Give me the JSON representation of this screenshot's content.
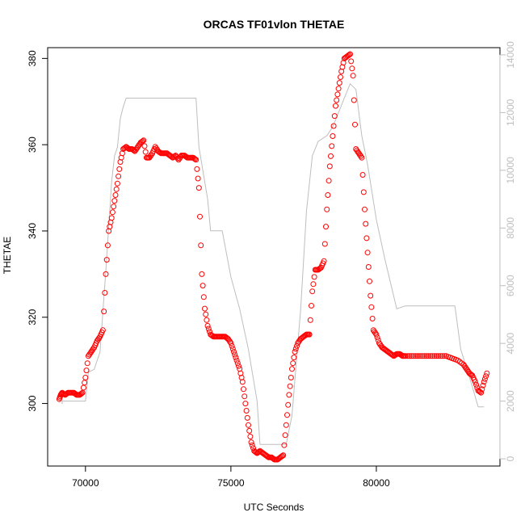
{
  "chart_data": {
    "type": "scatter",
    "title": "ORCAS TF01vlon THETAE",
    "xlabel": "UTC Seconds",
    "ylabel": "THETAE",
    "xlim": [
      68700,
      84250
    ],
    "ylim": [
      285.5,
      382.5
    ],
    "y2lim": [
      -250,
      14250
    ],
    "x_ticks": [
      70000,
      75000,
      80000
    ],
    "y_ticks": [
      300,
      320,
      340,
      360,
      380
    ],
    "y2_ticks": [
      0,
      2000,
      4000,
      6000,
      8000,
      10000,
      12000,
      14000
    ],
    "grid": false,
    "colors": {
      "theta": "#ff0000",
      "altitude": "#bebebe",
      "axis": "#000000"
    },
    "series": [
      {
        "marker": "open-circle",
        "axis": "left",
        "points": [
          [
            69100,
            301
          ],
          [
            69150,
            302
          ],
          [
            69200,
            302.5
          ],
          [
            69300,
            302
          ],
          [
            69400,
            302.5
          ],
          [
            69500,
            302.5
          ],
          [
            69600,
            302.5
          ],
          [
            69700,
            302
          ],
          [
            69800,
            302
          ],
          [
            69900,
            302.5
          ],
          [
            70000,
            306
          ],
          [
            70100,
            311
          ],
          [
            70200,
            312
          ],
          [
            70300,
            313
          ],
          [
            70400,
            314.5
          ],
          [
            70500,
            315.5
          ],
          [
            70600,
            317
          ],
          [
            70700,
            330
          ],
          [
            70800,
            340
          ],
          [
            70900,
            343
          ],
          [
            71000,
            347
          ],
          [
            71100,
            351
          ],
          [
            71200,
            356
          ],
          [
            71300,
            359
          ],
          [
            71400,
            359.5
          ],
          [
            71500,
            359
          ],
          [
            71600,
            359
          ],
          [
            71700,
            358.5
          ],
          [
            71800,
            359.5
          ],
          [
            71900,
            360.5
          ],
          [
            72000,
            361
          ],
          [
            72100,
            357
          ],
          [
            72200,
            357
          ],
          [
            72300,
            358
          ],
          [
            72400,
            359.5
          ],
          [
            72500,
            358.5
          ],
          [
            72600,
            358
          ],
          [
            72700,
            358
          ],
          [
            72800,
            358
          ],
          [
            72900,
            357.5
          ],
          [
            73000,
            357
          ],
          [
            73100,
            357.5
          ],
          [
            73200,
            356.5
          ],
          [
            73300,
            357.5
          ],
          [
            73400,
            357.5
          ],
          [
            73500,
            357
          ],
          [
            73600,
            357
          ],
          [
            73700,
            357
          ],
          [
            73800,
            356.5
          ],
          [
            73900,
            350
          ],
          [
            74000,
            330
          ],
          [
            74100,
            322
          ],
          [
            74200,
            318
          ],
          [
            74300,
            316
          ],
          [
            74400,
            315.5
          ],
          [
            74500,
            315.5
          ],
          [
            74600,
            315.5
          ],
          [
            74700,
            315.5
          ],
          [
            74800,
            315.5
          ],
          [
            74900,
            315
          ],
          [
            75000,
            314
          ],
          [
            75100,
            312
          ],
          [
            75200,
            310
          ],
          [
            75300,
            308
          ],
          [
            75400,
            305
          ],
          [
            75500,
            300
          ],
          [
            75600,
            295
          ],
          [
            75700,
            291
          ],
          [
            75800,
            289
          ],
          [
            75900,
            288.5
          ],
          [
            76000,
            289
          ],
          [
            76100,
            288.5
          ],
          [
            76200,
            288
          ],
          [
            76300,
            287.5
          ],
          [
            76400,
            287.5
          ],
          [
            76500,
            287
          ],
          [
            76600,
            287
          ],
          [
            76700,
            287.5
          ],
          [
            76800,
            288
          ],
          [
            76900,
            295
          ],
          [
            77000,
            302
          ],
          [
            77100,
            308
          ],
          [
            77200,
            312
          ],
          [
            77300,
            314
          ],
          [
            77400,
            315
          ],
          [
            77500,
            315.5
          ],
          [
            77600,
            316
          ],
          [
            77700,
            316
          ],
          [
            77800,
            326
          ],
          [
            77900,
            331
          ],
          [
            78000,
            331
          ],
          [
            78100,
            331.5
          ],
          [
            78200,
            333
          ],
          [
            78300,
            345
          ],
          [
            78400,
            355
          ],
          [
            78500,
            362
          ],
          [
            78600,
            369
          ],
          [
            78700,
            373
          ],
          [
            78800,
            377
          ],
          [
            78900,
            380
          ],
          [
            79000,
            380.5
          ],
          [
            79100,
            381
          ],
          [
            79200,
            376
          ],
          [
            79300,
            359
          ],
          [
            79400,
            358
          ],
          [
            79500,
            357
          ],
          [
            79600,
            345
          ],
          [
            79700,
            335
          ],
          [
            79800,
            325
          ],
          [
            79900,
            317
          ],
          [
            80000,
            316
          ],
          [
            80100,
            314
          ],
          [
            80200,
            313
          ],
          [
            80300,
            312.5
          ],
          [
            80400,
            312
          ],
          [
            80500,
            311.5
          ],
          [
            80600,
            311
          ],
          [
            80700,
            311.5
          ],
          [
            80800,
            311.5
          ],
          [
            80900,
            311
          ],
          [
            81000,
            311
          ],
          [
            81200,
            311
          ],
          [
            81400,
            311
          ],
          [
            81600,
            311
          ],
          [
            81800,
            311
          ],
          [
            82000,
            311
          ],
          [
            82200,
            311
          ],
          [
            82400,
            311
          ],
          [
            82600,
            310.5
          ],
          [
            82800,
            310
          ],
          [
            83000,
            309
          ],
          [
            83100,
            308
          ],
          [
            83200,
            307
          ],
          [
            83300,
            306.5
          ],
          [
            83400,
            305
          ],
          [
            83500,
            303
          ],
          [
            83600,
            302.5
          ],
          [
            83700,
            305
          ],
          [
            83800,
            307
          ]
        ]
      },
      {
        "marker": "line",
        "axis": "right",
        "points": [
          [
            69200,
            1900
          ],
          [
            69200,
            2000
          ],
          [
            70000,
            2000
          ],
          [
            70100,
            3000
          ],
          [
            70300,
            3100
          ],
          [
            70500,
            3700
          ],
          [
            70700,
            6500
          ],
          [
            70900,
            9600
          ],
          [
            71000,
            10500
          ],
          [
            71100,
            10800
          ],
          [
            71200,
            11800
          ],
          [
            71300,
            12200
          ],
          [
            71400,
            12500
          ],
          [
            73800,
            12500
          ],
          [
            73900,
            10800
          ],
          [
            74200,
            9000
          ],
          [
            74300,
            7900
          ],
          [
            74700,
            7900
          ],
          [
            75000,
            6300
          ],
          [
            75300,
            5200
          ],
          [
            75600,
            3800
          ],
          [
            75900,
            2000
          ],
          [
            76000,
            500
          ],
          [
            76900,
            500
          ],
          [
            77100,
            1500
          ],
          [
            77400,
            5200
          ],
          [
            77600,
            8600
          ],
          [
            77800,
            10500
          ],
          [
            78000,
            11000
          ],
          [
            78300,
            11200
          ],
          [
            78500,
            11500
          ],
          [
            78700,
            12000
          ],
          [
            78900,
            12500
          ],
          [
            79100,
            13000
          ],
          [
            79300,
            12800
          ],
          [
            79500,
            11200
          ],
          [
            79700,
            10200
          ],
          [
            80000,
            8300
          ],
          [
            80300,
            6900
          ],
          [
            80700,
            5200
          ],
          [
            81000,
            5300
          ],
          [
            82700,
            5300
          ],
          [
            82900,
            3800
          ],
          [
            83300,
            2500
          ],
          [
            83500,
            1800
          ],
          [
            83700,
            1800
          ]
        ]
      }
    ]
  }
}
